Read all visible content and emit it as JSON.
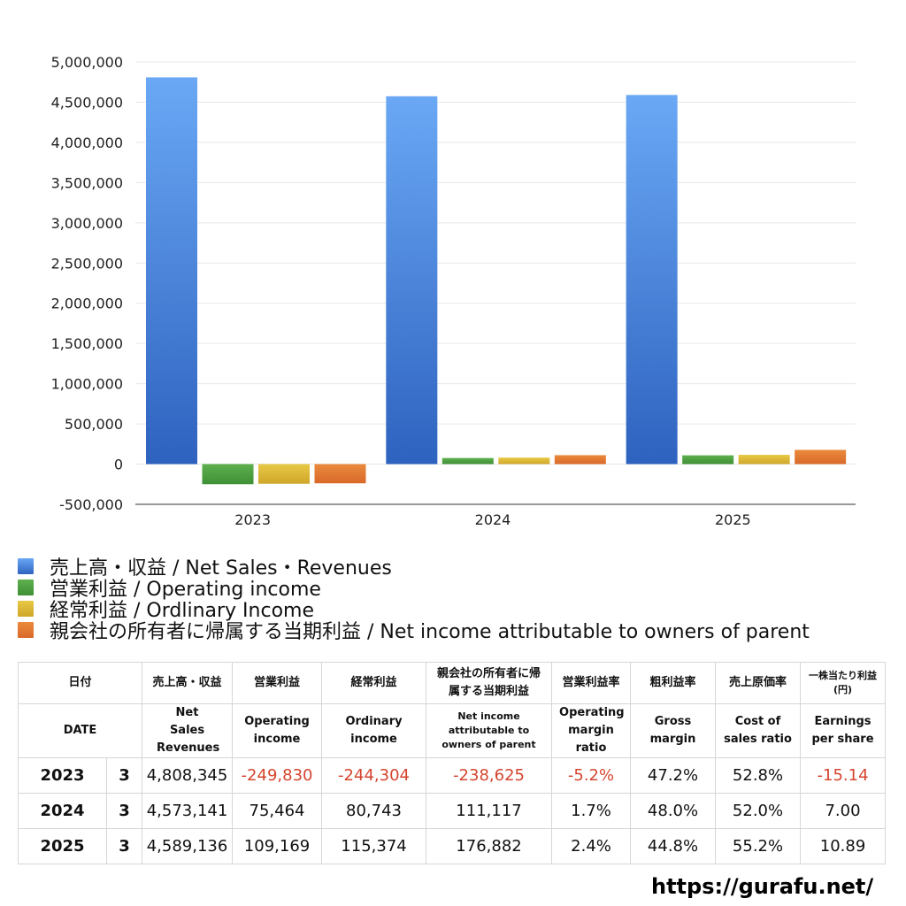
{
  "chart_data": {
    "type": "bar",
    "categories": [
      "2023",
      "2024",
      "2025"
    ],
    "series": [
      {
        "name": "売上高・収益 / Net Sales・Revenues",
        "values": [
          4808345,
          4573141,
          4589136
        ],
        "color_top": "#6aa8f5",
        "color_bottom": "#2e62bf"
      },
      {
        "name": "営業利益 / Operating income",
        "values": [
          -249830,
          75464,
          109169
        ],
        "color_top": "#5eb04e",
        "color_bottom": "#3f8f35"
      },
      {
        "name": "経常利益 / Ordlinary Income",
        "values": [
          -244304,
          80743,
          115374
        ],
        "color_top": "#e8c945",
        "color_bottom": "#cfa62a"
      },
      {
        "name": "親会社の所有者に帰属する当期利益 / Net income attributable to owners of parent",
        "values": [
          -238625,
          111117,
          176882
        ],
        "color_top": "#ea8a3c",
        "color_bottom": "#d9692a"
      }
    ],
    "ylim": [
      -500000,
      5000000
    ],
    "yticks": [
      5000000,
      4500000,
      4000000,
      3500000,
      3000000,
      2500000,
      2000000,
      1500000,
      1000000,
      500000,
      0,
      -500000
    ],
    "ytick_labels": [
      "5,000,000",
      "4,500,000",
      "4,000,000",
      "3,500,000",
      "3,000,000",
      "2,500,000",
      "2,000,000",
      "1,500,000",
      "1,000,000",
      "500,000",
      "0",
      "-500,000"
    ],
    "grid": true,
    "legend_position": "bottom"
  },
  "table": {
    "headers_jp": [
      "日付",
      "売上高・収益",
      "営業利益",
      "経常利益",
      "親会社の所有者に帰属する当期利益",
      "営業利益率",
      "粗利益率",
      "売上原価率",
      "一株当たり利益(円)"
    ],
    "headers_en": [
      "DATE",
      "Net Sales Revenues",
      "Operating income",
      "Ordinary income",
      "Net income attributable to owners of parent",
      "Operating margin ratio",
      "Gross margin",
      "Cost of sales ratio",
      "Earnings per share"
    ],
    "rows": [
      {
        "year": "2023",
        "month": "3",
        "sales": "4,808,345",
        "op": "-249,830",
        "ord": "-244,304",
        "net": "-238,625",
        "opm": "-5.2%",
        "gm": "47.2%",
        "cos": "52.8%",
        "eps": "-15.14"
      },
      {
        "year": "2024",
        "month": "3",
        "sales": "4,573,141",
        "op": "75,464",
        "ord": "80,743",
        "net": "111,117",
        "opm": "1.7%",
        "gm": "48.0%",
        "cos": "52.0%",
        "eps": "7.00"
      },
      {
        "year": "2025",
        "month": "3",
        "sales": "4,589,136",
        "op": "109,169",
        "ord": "115,374",
        "net": "176,882",
        "opm": "2.4%",
        "gm": "44.8%",
        "cos": "55.2%",
        "eps": "10.89"
      }
    ],
    "negative_color": "#d5452e"
  },
  "footer": {
    "url": "https://gurafu.net/"
  }
}
